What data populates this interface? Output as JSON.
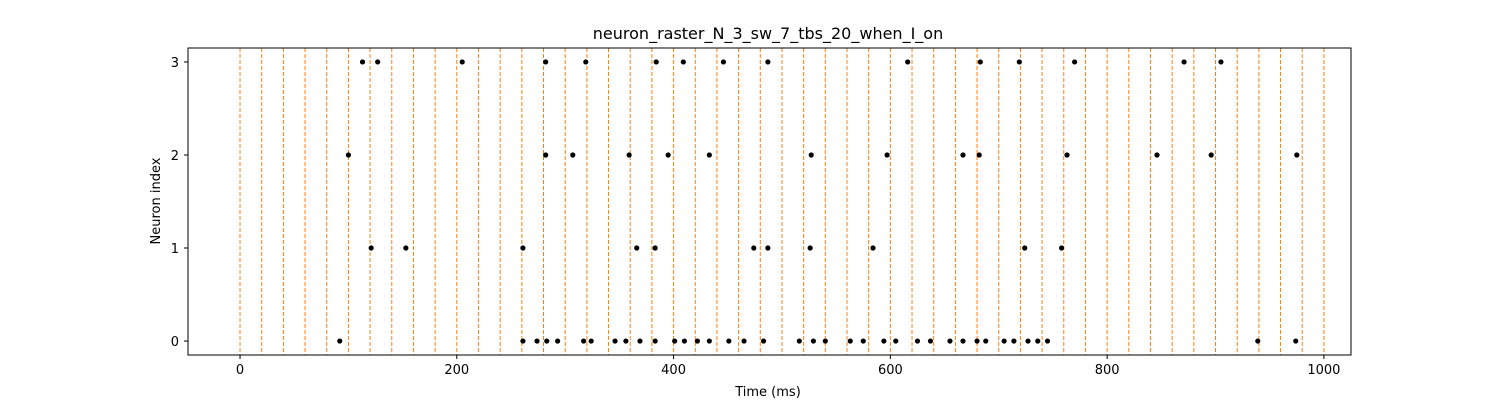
{
  "chart_data": {
    "type": "scatter",
    "title": "neuron_raster_N_3_sw_7_tbs_20_when_I_on",
    "xlabel": "Time (ms)",
    "ylabel": "Neuron index",
    "xlim": [
      -48,
      1025
    ],
    "ylim": [
      -0.15,
      3.15
    ],
    "x_ticks": [
      0,
      200,
      400,
      600,
      800,
      1000
    ],
    "y_ticks": [
      0,
      1,
      2,
      3
    ],
    "grid": false,
    "legend": "none",
    "time_bin_markers": {
      "color": "#ff7f0e",
      "style": "dashed",
      "x": [
        0,
        20,
        40,
        60,
        80,
        100,
        120,
        140,
        160,
        180,
        200,
        220,
        240,
        260,
        280,
        300,
        320,
        340,
        360,
        380,
        400,
        420,
        440,
        460,
        480,
        500,
        520,
        540,
        560,
        580,
        600,
        620,
        640,
        660,
        680,
        700,
        720,
        740,
        760,
        780,
        800,
        820,
        840,
        860,
        880,
        900,
        920,
        940,
        960,
        980,
        1000
      ]
    },
    "spike_color": "#000000",
    "series": [
      {
        "neuron": 0,
        "spike_times": [
          92,
          261,
          274,
          283,
          293,
          317,
          324,
          346,
          356,
          369,
          383,
          401,
          410,
          422,
          433,
          451,
          465,
          483,
          516,
          529,
          540,
          563,
          575,
          594,
          605,
          625,
          637,
          655,
          667,
          680,
          688,
          705,
          714,
          727,
          736,
          745,
          939,
          974
        ]
      },
      {
        "neuron": 1,
        "spike_times": [
          121,
          153,
          261,
          366,
          383,
          474,
          487,
          526,
          584,
          724,
          758
        ]
      },
      {
        "neuron": 2,
        "spike_times": [
          100,
          282,
          307,
          359,
          395,
          433,
          527,
          597,
          667,
          682,
          763,
          846,
          896,
          975
        ]
      },
      {
        "neuron": 3,
        "spike_times": [
          113,
          127,
          205,
          282,
          319,
          384,
          409,
          446,
          487,
          616,
          683,
          719,
          770,
          871,
          905
        ]
      }
    ]
  }
}
